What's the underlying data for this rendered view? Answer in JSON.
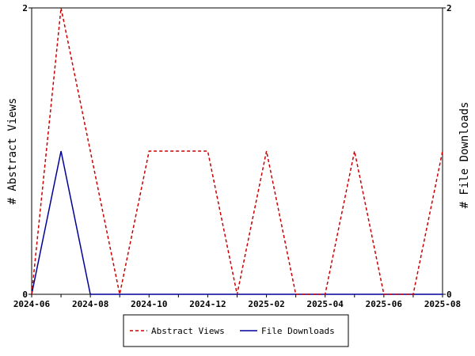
{
  "chart_data": {
    "type": "line",
    "x_labels": [
      "2024-06",
      "2024-08",
      "2024-10",
      "2024-12",
      "2025-02",
      "2025-04",
      "2025-06",
      "2025-08"
    ],
    "x_label_indices": [
      0,
      2,
      4,
      6,
      8,
      10,
      12,
      14
    ],
    "x_months": [
      "2024-06",
      "2024-07",
      "2024-08",
      "2024-09",
      "2024-10",
      "2024-11",
      "2024-12",
      "2025-01",
      "2025-02",
      "2025-03",
      "2025-04",
      "2025-05",
      "2025-06",
      "2025-07",
      "2025-08"
    ],
    "ylabel_left": "# Abstract Views",
    "ylabel_right": "# File Downloads",
    "ylim_left": [
      0,
      2
    ],
    "ylim_right": [
      0,
      2
    ],
    "y_ticks_left": [
      0,
      2
    ],
    "y_ticks_right": [
      0,
      2
    ],
    "legend_position": "bottom",
    "series": [
      {
        "name": "Abstract Views",
        "axis": "left",
        "color": "#cc0000",
        "style": "dashed",
        "values": [
          0,
          2,
          1,
          0,
          1,
          1,
          1,
          0,
          1,
          0,
          0,
          1,
          0,
          0,
          1
        ]
      },
      {
        "name": "File Downloads",
        "axis": "right",
        "color": "#000099",
        "style": "solid",
        "values": [
          0,
          1,
          0,
          0,
          0,
          0,
          0,
          0,
          0,
          0,
          0,
          0,
          0,
          0,
          0
        ]
      }
    ]
  }
}
